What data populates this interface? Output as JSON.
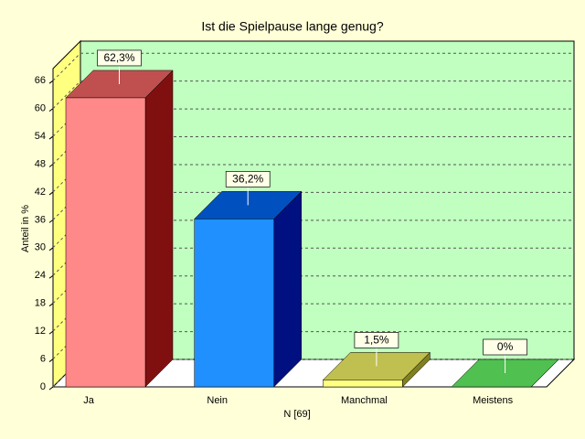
{
  "chart_data": {
    "type": "bar3d",
    "title": "Ist die Spielpause lange genug?",
    "x_label": "N [69]",
    "y_label": "Anteil in %",
    "categories": [
      "Ja",
      "Nein",
      "Manchmal",
      "Meistens"
    ],
    "values": [
      62.3,
      36.2,
      1.5,
      0
    ],
    "value_labels": [
      "62,3%",
      "36,2%",
      "1,5%",
      "0%"
    ],
    "colors": [
      {
        "front": "#ff8888",
        "top": "#c05050",
        "side": "#801010"
      },
      {
        "front": "#2090ff",
        "top": "#0050c0",
        "side": "#001080"
      },
      {
        "front": "#ffff80",
        "top": "#c0c050",
        "side": "#808020"
      },
      {
        "front": "#60d060",
        "top": "#50c050",
        "side": "#208020"
      }
    ],
    "ylim": [
      0,
      68.6
    ],
    "yticks": [
      0,
      6,
      12,
      18,
      24,
      30,
      36,
      42,
      48,
      54,
      60,
      66
    ],
    "grid": true
  }
}
